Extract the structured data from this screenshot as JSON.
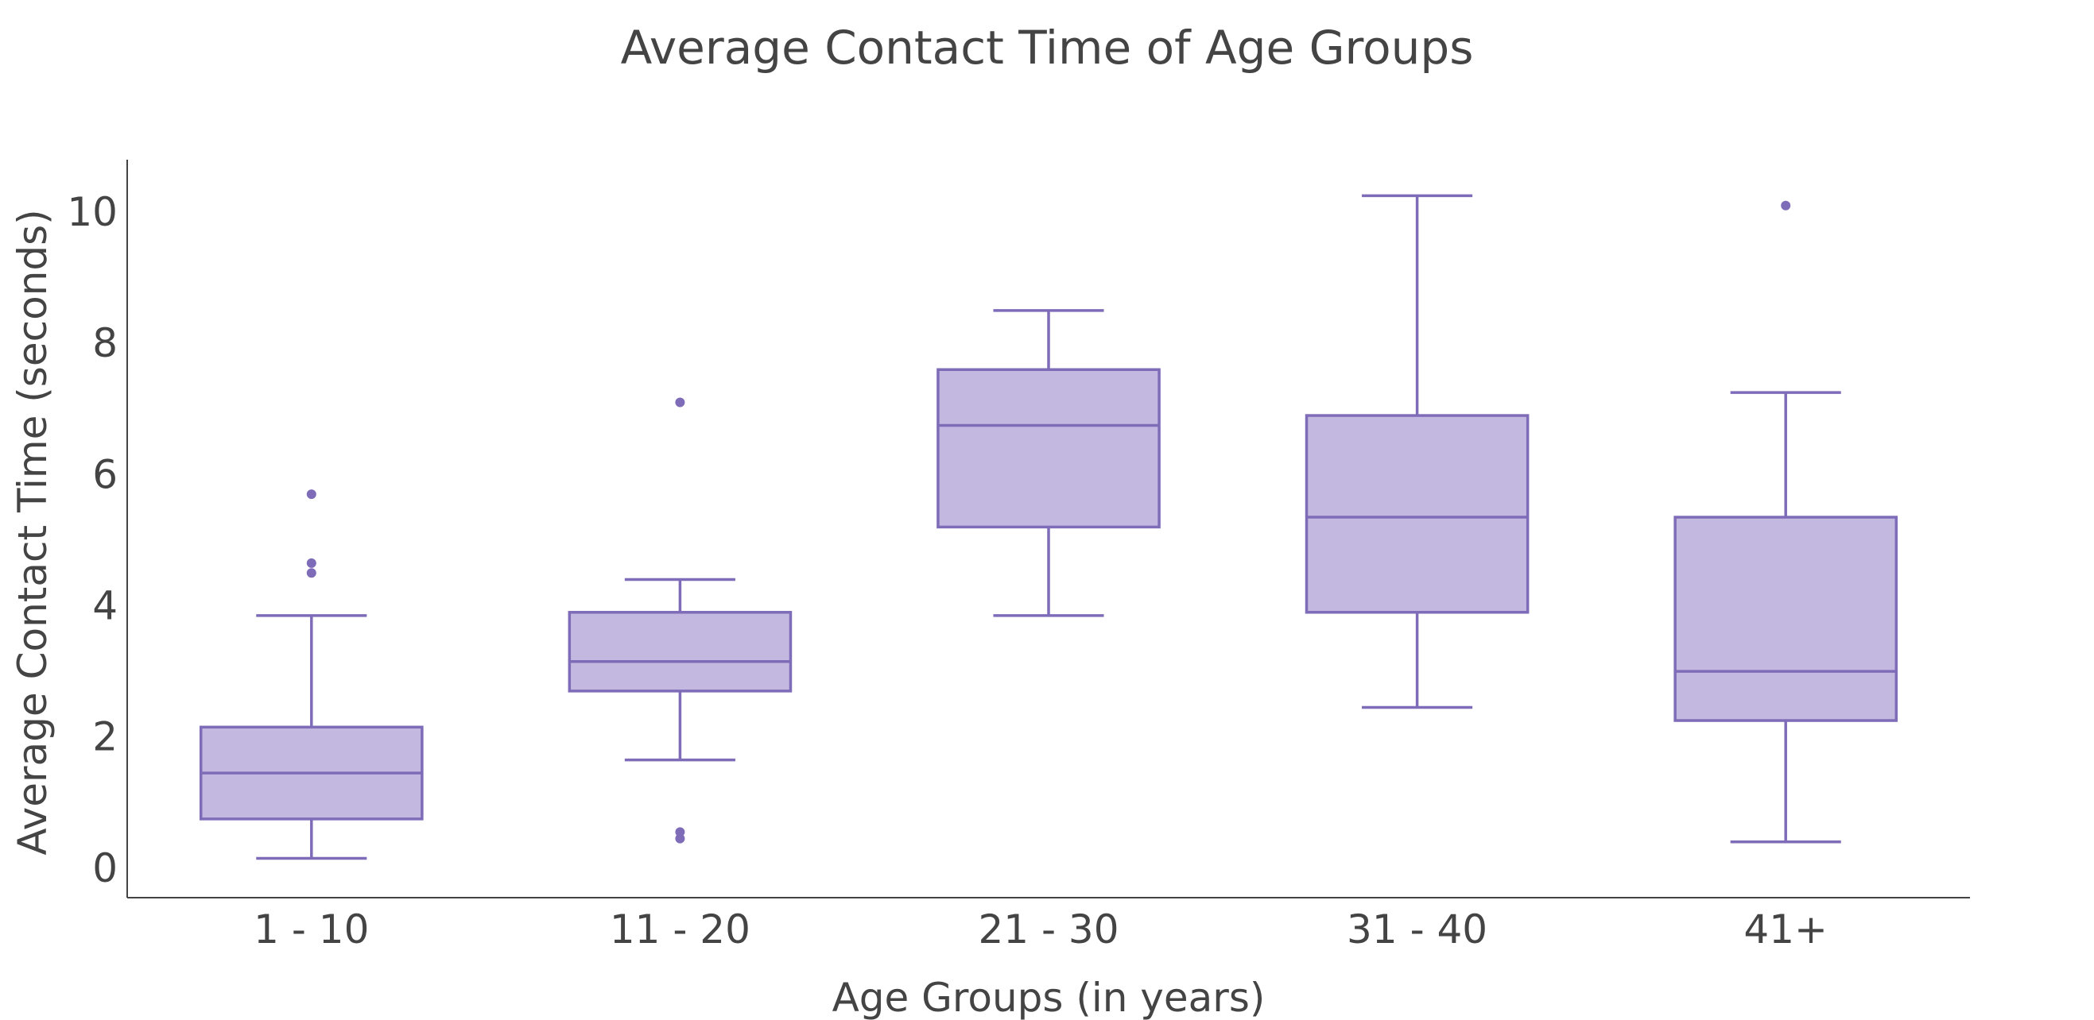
{
  "chart_data": {
    "type": "box",
    "title": "Average Contact Time of Age Groups",
    "xlabel": "Age Groups (in years)",
    "ylabel": "Average Contact Time (seconds)",
    "categories": [
      "1 - 10",
      "11 - 20",
      "21 - 30",
      "31 - 40",
      "41+"
    ],
    "ylim": [
      -0.45,
      10.8
    ],
    "yticks": [
      0,
      2,
      4,
      6,
      8,
      10
    ],
    "grid": false,
    "legend": "none",
    "colors": {
      "box_fill": "#c3b8e0",
      "box_line": "#7f6cb9",
      "text": "#444444",
      "axis": "#444444"
    },
    "boxes": [
      {
        "category": "1 - 10",
        "min": 0.15,
        "q1": 0.75,
        "median": 1.45,
        "q3": 2.15,
        "max": 3.85,
        "outliers": [
          4.5,
          4.65,
          5.7
        ]
      },
      {
        "category": "11 - 20",
        "min": 1.65,
        "q1": 2.7,
        "median": 3.15,
        "q3": 3.9,
        "max": 4.4,
        "outliers": [
          0.45,
          0.55,
          7.1
        ]
      },
      {
        "category": "21 - 30",
        "min": 3.85,
        "q1": 5.2,
        "median": 6.75,
        "q3": 7.6,
        "max": 8.5,
        "outliers": []
      },
      {
        "category": "31 - 40",
        "min": 2.45,
        "q1": 3.9,
        "median": 5.35,
        "q3": 6.9,
        "max": 10.25,
        "outliers": []
      },
      {
        "category": "41+",
        "min": 0.4,
        "q1": 2.25,
        "median": 3.0,
        "q3": 5.35,
        "max": 7.25,
        "outliers": [
          10.1
        ]
      }
    ]
  }
}
